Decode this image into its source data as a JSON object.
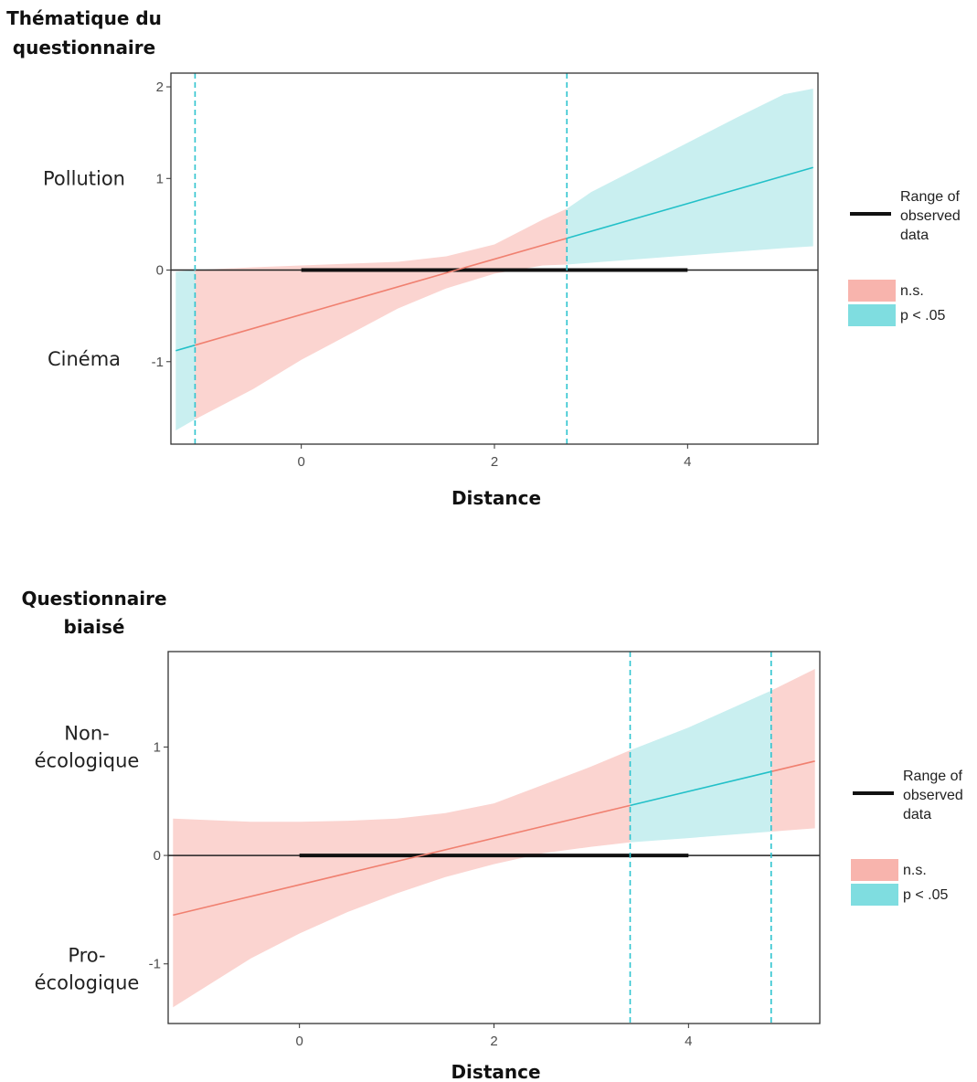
{
  "chart_data": [
    {
      "type": "line",
      "title_lines": [
        "Thématique du",
        "questionnaire"
      ],
      "xlabel": "Distance",
      "xlim": [
        -1.35,
        5.35
      ],
      "ylim": [
        -1.9,
        2.15
      ],
      "x_ticks": [
        "0",
        "2",
        "4"
      ],
      "y_ticks": [
        "-1",
        "0",
        "1",
        "2"
      ],
      "side_labels": [
        {
          "lines": [
            "Pollution"
          ],
          "y": 1.0
        },
        {
          "lines": [
            "Cinéma"
          ],
          "y": -0.97
        }
      ],
      "fit": {
        "x": [
          -1.3,
          5.3
        ],
        "y": [
          -0.88,
          1.12
        ]
      },
      "band": {
        "x": [
          -1.3,
          -1.1,
          -0.5,
          0.0,
          0.5,
          1.0,
          1.5,
          2.0,
          2.5,
          2.75,
          3.0,
          3.5,
          4.0,
          4.5,
          5.0,
          5.3
        ],
        "lower": [
          -1.75,
          -1.63,
          -1.3,
          -0.98,
          -0.7,
          -0.42,
          -0.2,
          -0.04,
          0.05,
          0.06,
          0.08,
          0.12,
          0.16,
          0.2,
          0.24,
          0.26
        ],
        "upper": [
          -0.02,
          0.0,
          0.03,
          0.05,
          0.07,
          0.09,
          0.15,
          0.28,
          0.55,
          0.67,
          0.85,
          1.12,
          1.39,
          1.66,
          1.92,
          1.98
        ]
      },
      "significance_regions": [
        {
          "from": -1.3,
          "to": -1.1,
          "status": "p < .05"
        },
        {
          "from": -1.1,
          "to": 2.75,
          "status": "n.s."
        },
        {
          "from": 2.75,
          "to": 5.3,
          "status": "p < .05"
        }
      ],
      "vlines": [
        -1.1,
        2.75
      ],
      "observed_range": [
        0.0,
        4.0
      ],
      "legend": {
        "range_label_lines": [
          "Range of",
          "observed",
          "data"
        ],
        "items": [
          {
            "label": "n.s.",
            "color": "#f8b4ad"
          },
          {
            "label": "p < .05",
            "color": "#7fdde0"
          }
        ]
      }
    },
    {
      "type": "line",
      "title_lines": [
        "Questionnaire",
        "biaisé"
      ],
      "xlabel": "Distance",
      "xlim": [
        -1.35,
        5.35
      ],
      "ylim": [
        -1.55,
        1.88
      ],
      "x_ticks": [
        "0",
        "2",
        "4"
      ],
      "y_ticks": [
        "-1",
        "0",
        "1"
      ],
      "side_labels": [
        {
          "lines": [
            "Non-",
            "écologique"
          ],
          "y": 1.0
        },
        {
          "lines": [
            "Pro-",
            "écologique"
          ],
          "y": -1.05
        }
      ],
      "fit": {
        "x": [
          -1.3,
          5.3
        ],
        "y": [
          -0.55,
          0.87
        ]
      },
      "band": {
        "x": [
          -1.3,
          -0.5,
          0.0,
          0.5,
          1.0,
          1.5,
          2.0,
          2.5,
          3.0,
          3.4,
          4.0,
          4.85,
          5.3
        ],
        "lower": [
          -1.4,
          -0.95,
          -0.72,
          -0.52,
          -0.35,
          -0.2,
          -0.08,
          0.02,
          0.08,
          0.12,
          0.16,
          0.22,
          0.25
        ],
        "upper": [
          0.34,
          0.31,
          0.31,
          0.32,
          0.34,
          0.39,
          0.48,
          0.65,
          0.82,
          0.97,
          1.18,
          1.52,
          1.72
        ]
      },
      "significance_regions": [
        {
          "from": -1.3,
          "to": 3.4,
          "status": "n.s."
        },
        {
          "from": 3.4,
          "to": 4.85,
          "status": "p < .05"
        },
        {
          "from": 4.85,
          "to": 5.3,
          "status": "n.s."
        }
      ],
      "vlines": [
        3.4,
        4.85
      ],
      "observed_range": [
        0.0,
        4.0
      ],
      "legend": {
        "range_label_lines": [
          "Range of",
          "observed",
          "data"
        ],
        "items": [
          {
            "label": "n.s.",
            "color": "#f8b4ad"
          },
          {
            "label": "p < .05",
            "color": "#7fdde0"
          }
        ]
      }
    }
  ],
  "colors": {
    "ns_band": "#fbd4d0",
    "sig_band": "#c9eff0",
    "ns_line": "#f08070",
    "sig_line": "#22c0c8",
    "vline": "#2ec4cf",
    "observed": "#111111"
  }
}
